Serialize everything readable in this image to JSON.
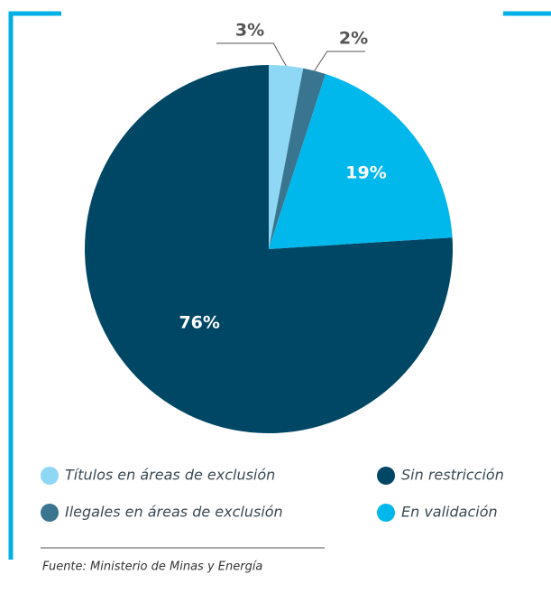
{
  "chart_data": {
    "type": "pie",
    "categories": [
      "Títulos en áreas de exclusión",
      "Ilegales en áreas de exclusión",
      "En validación",
      "Sin restricción"
    ],
    "values": [
      3,
      2,
      19,
      76
    ],
    "value_labels": [
      "3%",
      "2%",
      "19%",
      "76%"
    ],
    "colors": [
      "#8fd8f5",
      "#3a7590",
      "#00b8ec",
      "#004766"
    ],
    "source": "Fuente: Ministerio de Minas y Energía"
  }
}
